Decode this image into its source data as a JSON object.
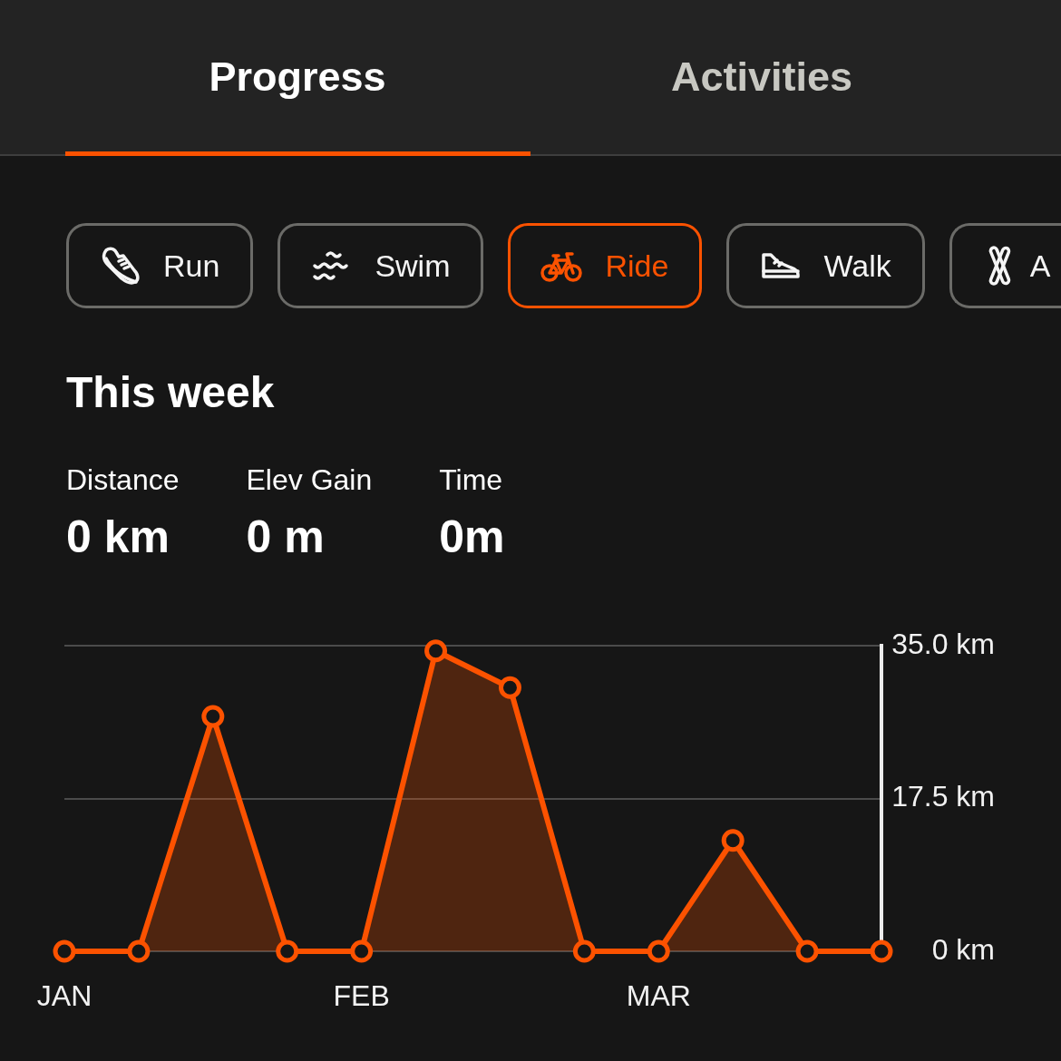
{
  "chart_data": {
    "type": "area",
    "title": "This week",
    "annotations": [
      "Progress",
      "Activities",
      "Run",
      "Swim",
      "Ride",
      "Walk",
      "A",
      "Distance",
      "0 km",
      "Elev Gain",
      "0 m",
      "Time",
      "0m"
    ],
    "categories": [
      "JAN",
      null,
      null,
      null,
      "FEB",
      null,
      null,
      null,
      "MAR",
      null,
      null,
      null
    ],
    "values": [
      0,
      0,
      26.9,
      0,
      0,
      34.4,
      30.2,
      0,
      0,
      12.7,
      0,
      0
    ],
    "color": "#fc5200",
    "ylim": [
      0,
      35
    ],
    "yticks": [
      {
        "value": 0,
        "label": "0 km"
      },
      {
        "value": 17.5,
        "label": "17.5 km"
      },
      {
        "value": 35,
        "label": "35.0 km"
      }
    ],
    "grid": "y",
    "marker": "circle"
  }
}
